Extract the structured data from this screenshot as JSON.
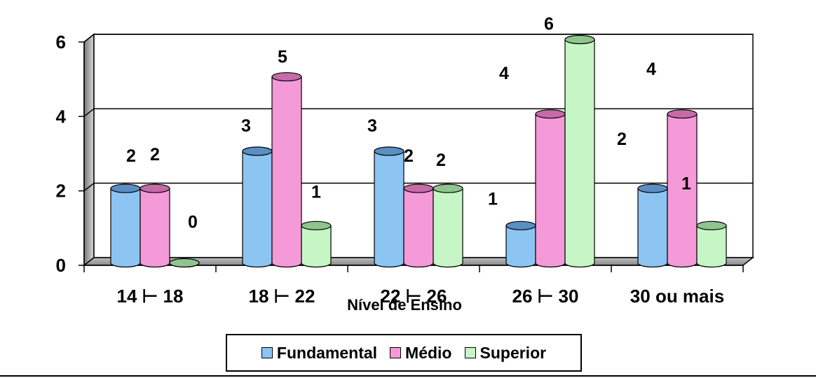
{
  "chart_data": {
    "type": "bar",
    "categories": [
      "14 ⊢ 18",
      "18 ⊢ 22",
      "22 ⊢ 26",
      "26 ⊢ 30",
      "30 ou mais"
    ],
    "series": [
      {
        "name": "Fundamental",
        "values": [
          2,
          3,
          3,
          1,
          2
        ],
        "color": "#8cc4f2",
        "dark": "#5a8fc4"
      },
      {
        "name": "Médio",
        "values": [
          2,
          5,
          2,
          4,
          4
        ],
        "color": "#f59ad8",
        "dark": "#c66aa8"
      },
      {
        "name": "Superior",
        "values": [
          0,
          1,
          2,
          6,
          1
        ],
        "color": "#c6f5c6",
        "dark": "#8fc48f"
      }
    ],
    "data_labels": [
      [
        "2",
        "2",
        "0"
      ],
      [
        "3",
        "5",
        "1"
      ],
      [
        "3",
        "2",
        "2"
      ],
      [
        "1",
        "4",
        "6"
      ],
      [
        "2",
        "4",
        "1"
      ]
    ],
    "xlabel": "Nível de Ensino",
    "ylabel": "",
    "yticks": [
      "0",
      "2",
      "4",
      "6"
    ],
    "ylim": [
      0,
      6
    ],
    "grid": true,
    "legend": "bottom"
  }
}
